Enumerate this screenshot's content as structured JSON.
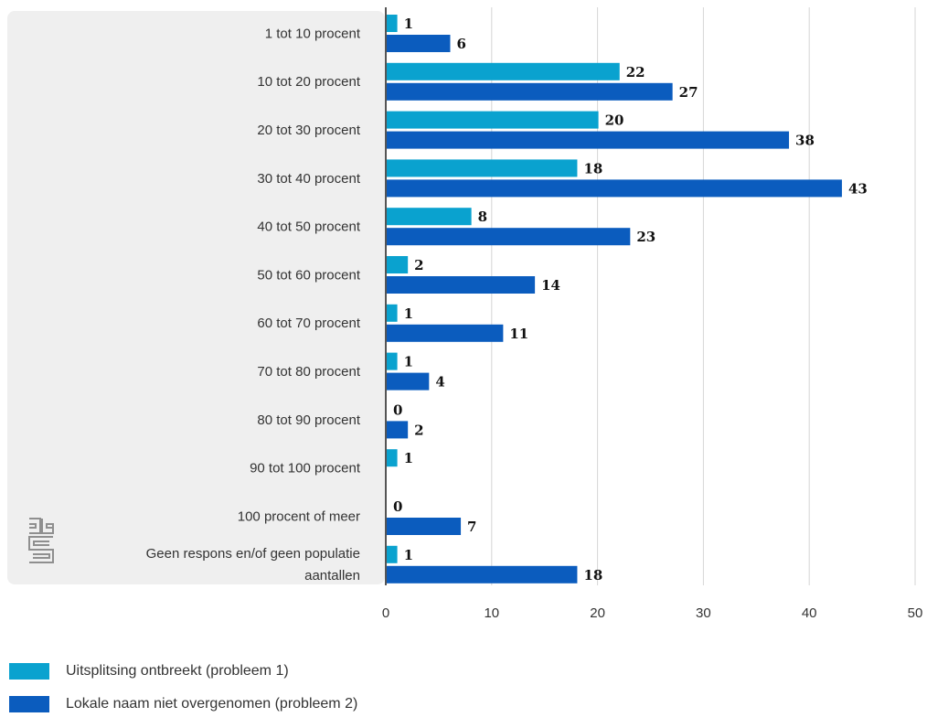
{
  "chart_data": {
    "type": "bar",
    "orientation": "horizontal",
    "categories": [
      [
        "1 tot 10 procent"
      ],
      [
        "10 tot 20 procent"
      ],
      [
        "20 tot 30 procent"
      ],
      [
        "30 tot 40 procent"
      ],
      [
        "40 tot 50 procent"
      ],
      [
        "50 tot 60 procent"
      ],
      [
        "60 tot 70 procent"
      ],
      [
        "70 tot 80 procent"
      ],
      [
        "80 tot 90 procent"
      ],
      [
        "90 tot 100 procent"
      ],
      [
        "100 procent of meer"
      ],
      [
        "Geen respons en/of geen populatie",
        "aantallen"
      ]
    ],
    "series": [
      {
        "name": "Uitsplitsing ontbreekt (probleem 1)",
        "color": "#0aa2cf",
        "values": [
          1,
          22,
          20,
          18,
          8,
          2,
          1,
          1,
          0,
          1,
          0,
          1
        ]
      },
      {
        "name": "Lokale naam niet overgenomen (probleem 2)",
        "color": "#0b5cbe",
        "values": [
          6,
          27,
          38,
          43,
          23,
          14,
          11,
          4,
          2,
          null,
          7,
          18
        ]
      }
    ],
    "xlim": [
      0,
      50
    ],
    "xticks": [
      0,
      10,
      20,
      30,
      40,
      50
    ],
    "grid": true,
    "legend_position": "bottom-left"
  },
  "icons": {
    "logo": "cbs-logo"
  }
}
